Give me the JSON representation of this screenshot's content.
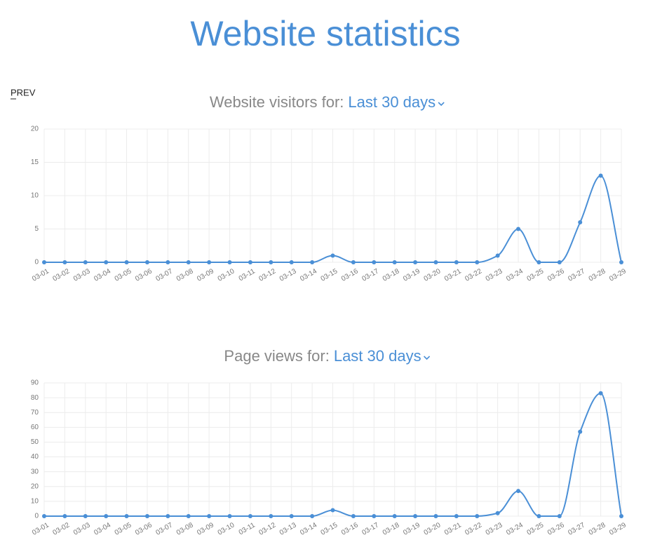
{
  "header": {
    "title": "Website statistics",
    "prev": "PREV"
  },
  "chart_data": [
    {
      "type": "line",
      "title": "Website visitors for:",
      "period": "Last 30 days",
      "categories": [
        "03-01",
        "03-02",
        "03-03",
        "03-04",
        "03-05",
        "03-06",
        "03-07",
        "03-08",
        "03-09",
        "03-10",
        "03-11",
        "03-12",
        "03-13",
        "03-14",
        "03-15",
        "03-16",
        "03-17",
        "03-18",
        "03-19",
        "03-20",
        "03-21",
        "03-22",
        "03-23",
        "03-24",
        "03-25",
        "03-26",
        "03-27",
        "03-28",
        "03-29"
      ],
      "series": [
        {
          "color": "#4a8fd6",
          "values": [
            0,
            0,
            0,
            0,
            0,
            0,
            0,
            0,
            0,
            0,
            0,
            0,
            0,
            0,
            1,
            0,
            0,
            0,
            0,
            0,
            0,
            0,
            1,
            5,
            0,
            0,
            6,
            13,
            0
          ]
        }
      ],
      "ylim": [
        0,
        20
      ],
      "yticks": [
        0,
        5,
        10,
        15,
        20
      ],
      "grid": true
    },
    {
      "type": "line",
      "title": "Page views for:",
      "period": "Last 30 days",
      "categories": [
        "03-01",
        "03-02",
        "03-03",
        "03-04",
        "03-05",
        "03-06",
        "03-07",
        "03-08",
        "03-09",
        "03-10",
        "03-11",
        "03-12",
        "03-13",
        "03-14",
        "03-15",
        "03-16",
        "03-17",
        "03-18",
        "03-19",
        "03-20",
        "03-21",
        "03-22",
        "03-23",
        "03-24",
        "03-25",
        "03-26",
        "03-27",
        "03-28",
        "03-29"
      ],
      "series": [
        {
          "color": "#4a8fd6",
          "values": [
            0,
            0,
            0,
            0,
            0,
            0,
            0,
            0,
            0,
            0,
            0,
            0,
            0,
            0,
            4,
            0,
            0,
            0,
            0,
            0,
            0,
            0,
            2,
            17,
            0,
            0,
            57,
            83,
            0
          ]
        }
      ],
      "ylim": [
        0,
        90
      ],
      "yticks": [
        0,
        10,
        20,
        30,
        40,
        50,
        60,
        70,
        80,
        90
      ],
      "grid": true
    }
  ]
}
